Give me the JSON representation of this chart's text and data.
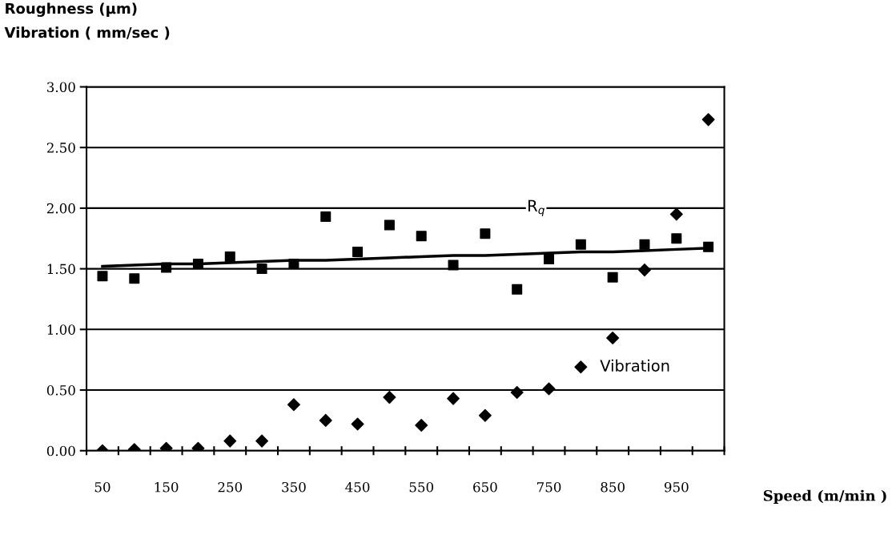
{
  "chart_data": {
    "type": "scatter",
    "ylabel": "Roughness (μm)\nVibration ( mm/sec )",
    "xlabel": "Speed (m/min )",
    "categories": [
      "50",
      null,
      "150",
      null,
      "250",
      null,
      "350",
      null,
      "450",
      null,
      "550",
      null,
      "650",
      null,
      "750",
      null,
      "850",
      null,
      "950",
      null
    ],
    "series": [
      {
        "name": "R$_{q}$",
        "marker": "square",
        "color": "#000000",
        "values": [
          1.44,
          1.42,
          1.51,
          1.54,
          1.6,
          1.5,
          1.54,
          1.93,
          1.64,
          1.86,
          1.77,
          1.53,
          1.79,
          1.33,
          1.58,
          1.7,
          1.43,
          1.7,
          1.75,
          1.68
        ]
      },
      {
        "name": "Vibration",
        "marker": "diamond",
        "color": "#000000",
        "values": [
          0.0,
          0.01,
          0.02,
          0.02,
          0.08,
          0.08,
          0.38,
          0.25,
          0.22,
          0.44,
          0.21,
          0.43,
          0.29,
          0.48,
          0.51,
          0.69,
          0.93,
          1.49,
          1.95,
          2.73
        ]
      },
      {
        "type": "line",
        "line_style": "solid",
        "color": "#000000",
        "values": [
          1.52,
          1.53,
          1.54,
          1.54,
          1.55,
          1.56,
          1.57,
          1.57,
          1.58,
          1.59,
          1.6,
          1.61,
          1.61,
          1.62,
          1.63,
          1.64,
          1.64,
          1.65,
          1.66,
          1.67
        ]
      }
    ],
    "ylim": [
      0,
      3
    ],
    "yticks": [
      {
        "value": 0,
        "label": "0.00"
      },
      {
        "value": 0.5,
        "label": "0.50"
      },
      {
        "value": 1,
        "label": "1.00"
      },
      {
        "value": 1.5,
        "label": "1.50"
      },
      {
        "value": 2,
        "label": "2.00"
      },
      {
        "value": 2.5,
        "label": "2.50"
      },
      {
        "value": 3,
        "label": "3.00"
      }
    ],
    "grid": "y",
    "legend": false
  }
}
